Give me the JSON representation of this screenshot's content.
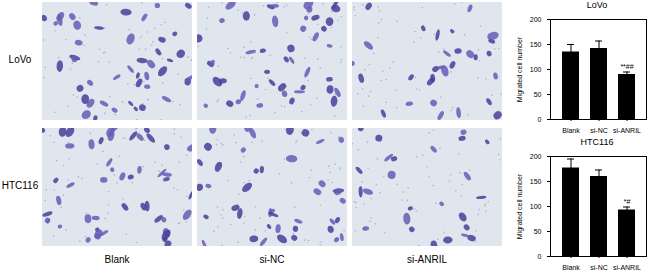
{
  "panels": {
    "rows": [
      "LoVo",
      "HTC116"
    ],
    "columns": [
      "Blank",
      "si-NC",
      "si-ANRIL"
    ]
  },
  "chart_data": [
    {
      "type": "bar",
      "title": "LoVo",
      "categories": [
        "Blank",
        "si-NC",
        "si-ANRIL"
      ],
      "values": [
        135,
        142,
        90
      ],
      "errors": [
        15,
        15,
        5
      ],
      "color": "#000000",
      "ylabel": "Migrated cell number",
      "ylim": [
        0,
        200
      ],
      "yticks": [
        0,
        50,
        100,
        150,
        200
      ],
      "annotations": [
        {
          "category": "si-ANRIL",
          "text": "**##"
        }
      ]
    },
    {
      "type": "bar",
      "title": "HTC116",
      "categories": [
        "Blank",
        "si-NC",
        "si-ANRIL"
      ],
      "values": [
        177,
        160,
        93
      ],
      "errors": [
        18,
        13,
        6
      ],
      "color": "#000000",
      "ylabel": "Migrated cell number",
      "ylim": [
        0,
        200
      ],
      "yticks": [
        0,
        50,
        100,
        150,
        200
      ],
      "annotations": [
        {
          "category": "si-ANRIL",
          "text": "*#"
        }
      ]
    }
  ]
}
